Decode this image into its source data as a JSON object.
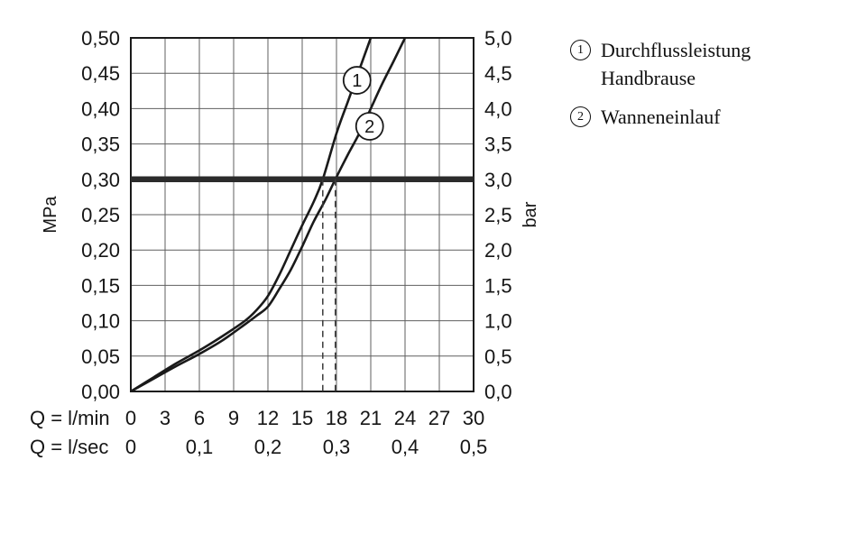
{
  "page": {
    "background": "#ffffff"
  },
  "colors": {
    "line": "#1a1a1a",
    "grid": "#5f5f5f",
    "border": "#1a1a1a",
    "reference_line": "#2b2b2b",
    "guide_line": "#3a3a3a",
    "marker_fill": "#ffffff",
    "text": "#161616"
  },
  "chart_data": {
    "type": "line",
    "title": "",
    "x_axis": {
      "label_primary": "Q = l/min",
      "label_secondary": "Q = l/sec",
      "range": [
        0,
        30
      ],
      "ticks": [
        0,
        3,
        6,
        9,
        12,
        15,
        18,
        21,
        24,
        27,
        30
      ],
      "tick_labels": [
        "0",
        "3",
        "6",
        "9",
        "12",
        "15",
        "18",
        "21",
        "24",
        "27",
        "30"
      ],
      "secondary_tick_positions": [
        0,
        6,
        12,
        18,
        24,
        30
      ],
      "secondary_tick_labels": [
        "0",
        "0,1",
        "0,2",
        "0,3",
        "0,4",
        "0,5"
      ]
    },
    "y_axis_left": {
      "label": "MPa",
      "range": [
        0,
        0.5
      ],
      "ticks": [
        0,
        0.05,
        0.1,
        0.15,
        0.2,
        0.25,
        0.3,
        0.35,
        0.4,
        0.45,
        0.5
      ],
      "tick_labels": [
        "0,00",
        "0,05",
        "0,10",
        "0,15",
        "0,20",
        "0,25",
        "0,30",
        "0,35",
        "0,40",
        "0,45",
        "0,50"
      ]
    },
    "y_axis_right": {
      "label": "bar",
      "tick_labels": [
        "0,0",
        "0,5",
        "1,0",
        "1,5",
        "2,0",
        "2,5",
        "3,0",
        "3,5",
        "4,0",
        "4,5",
        "5,0"
      ]
    },
    "grid": true,
    "reference_line": {
      "value_mpa": 0.3,
      "value_bar": 3.0
    },
    "guide_lines_x_lmin": [
      16.8,
      17.9
    ],
    "series": [
      {
        "marker": "1",
        "name": "Durchflussleistung Handbrause",
        "points_lmin_mpa": [
          [
            0,
            0
          ],
          [
            2,
            0.02
          ],
          [
            4,
            0.04
          ],
          [
            6,
            0.058
          ],
          [
            8,
            0.078
          ],
          [
            10,
            0.1
          ],
          [
            11,
            0.115
          ],
          [
            12,
            0.135
          ],
          [
            13,
            0.165
          ],
          [
            14,
            0.2
          ],
          [
            15,
            0.235
          ],
          [
            16,
            0.268
          ],
          [
            16.8,
            0.3
          ],
          [
            18,
            0.365
          ],
          [
            19,
            0.41
          ],
          [
            20,
            0.455
          ],
          [
            21,
            0.5
          ]
        ],
        "marker_at": [
          19.8,
          0.44
        ]
      },
      {
        "marker": "2",
        "name": "Wanneneinlauf",
        "points_lmin_mpa": [
          [
            0,
            0
          ],
          [
            2,
            0.018
          ],
          [
            4,
            0.036
          ],
          [
            6,
            0.053
          ],
          [
            8,
            0.072
          ],
          [
            10,
            0.095
          ],
          [
            11,
            0.107
          ],
          [
            12,
            0.12
          ],
          [
            13,
            0.145
          ],
          [
            14,
            0.172
          ],
          [
            15,
            0.205
          ],
          [
            16,
            0.24
          ],
          [
            17,
            0.27
          ],
          [
            17.9,
            0.3
          ],
          [
            19,
            0.335
          ],
          [
            20,
            0.365
          ],
          [
            21,
            0.4
          ],
          [
            22,
            0.435
          ],
          [
            23,
            0.467
          ],
          [
            24,
            0.5
          ]
        ],
        "marker_at": [
          20.9,
          0.375
        ]
      }
    ]
  },
  "legend": {
    "items": [
      {
        "marker": "1",
        "lines": [
          "Durchflussleistung",
          "Handbrause"
        ]
      },
      {
        "marker": "2",
        "lines": [
          "Wanneneinlauf"
        ]
      }
    ]
  }
}
